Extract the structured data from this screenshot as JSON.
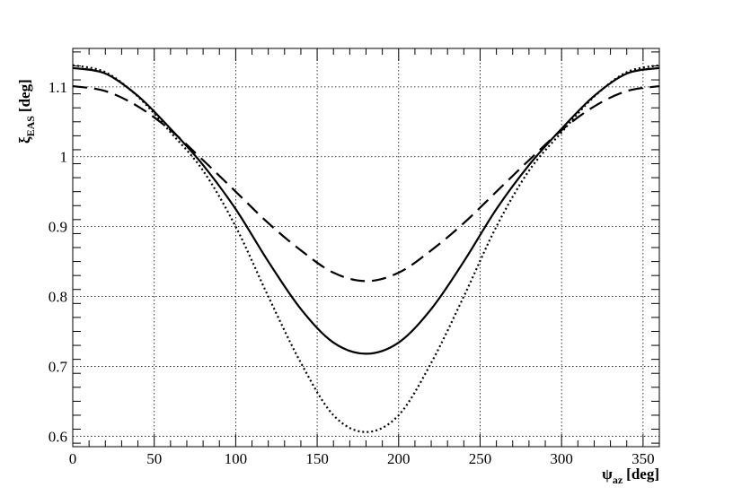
{
  "chart_data": {
    "type": "line",
    "xlabel": "ψ_az [deg]",
    "xlabel_parts": {
      "symbol": "ψ",
      "subscript": "az",
      "unit": "[deg]"
    },
    "ylabel": "ξ_EAS [deg]",
    "ylabel_parts": {
      "symbol": "ξ",
      "subscript": "EAS",
      "unit": "[deg]"
    },
    "xlim": [
      0,
      360
    ],
    "ylim": [
      0.585,
      1.155
    ],
    "grid": true,
    "xticks": [
      0,
      50,
      100,
      150,
      200,
      250,
      300,
      350
    ],
    "xtick_labels": [
      "0",
      "50",
      "100",
      "150",
      "200",
      "250",
      "300",
      "350"
    ],
    "yticks": [
      0.6,
      0.7,
      0.8,
      0.9,
      1.0,
      1.1
    ],
    "ytick_labels": [
      "0.6",
      "0.7",
      "0.8",
      "0.9",
      "1",
      "1.1"
    ],
    "series": [
      {
        "style": "solid",
        "color": "#000000",
        "x": [
          0,
          20,
          40,
          60,
          80,
          100,
          120,
          140,
          160,
          180,
          200,
          220,
          240,
          260,
          280,
          300,
          320,
          340,
          360
        ],
        "values": [
          1.127,
          1.119,
          1.087,
          1.04,
          0.988,
          0.925,
          0.85,
          0.782,
          0.734,
          0.718,
          0.734,
          0.782,
          0.85,
          0.925,
          0.988,
          1.04,
          1.087,
          1.119,
          1.127
        ]
      },
      {
        "style": "dotted",
        "color": "#000000",
        "x": [
          0,
          20,
          40,
          60,
          80,
          100,
          120,
          140,
          160,
          180,
          200,
          220,
          240,
          260,
          280,
          300,
          320,
          340,
          360
        ],
        "values": [
          1.131,
          1.121,
          1.086,
          1.035,
          0.98,
          0.9,
          0.8,
          0.705,
          0.63,
          0.606,
          0.63,
          0.705,
          0.8,
          0.9,
          0.98,
          1.035,
          1.086,
          1.121,
          1.131
        ]
      },
      {
        "style": "dashed",
        "color": "#000000",
        "x": [
          0,
          20,
          40,
          60,
          80,
          100,
          120,
          140,
          160,
          180,
          200,
          220,
          240,
          260,
          280,
          300,
          320,
          340,
          360
        ],
        "values": [
          1.101,
          1.094,
          1.072,
          1.038,
          0.995,
          0.95,
          0.905,
          0.866,
          0.834,
          0.822,
          0.834,
          0.866,
          0.905,
          0.95,
          0.995,
          1.038,
          1.072,
          1.094,
          1.101
        ]
      }
    ]
  }
}
